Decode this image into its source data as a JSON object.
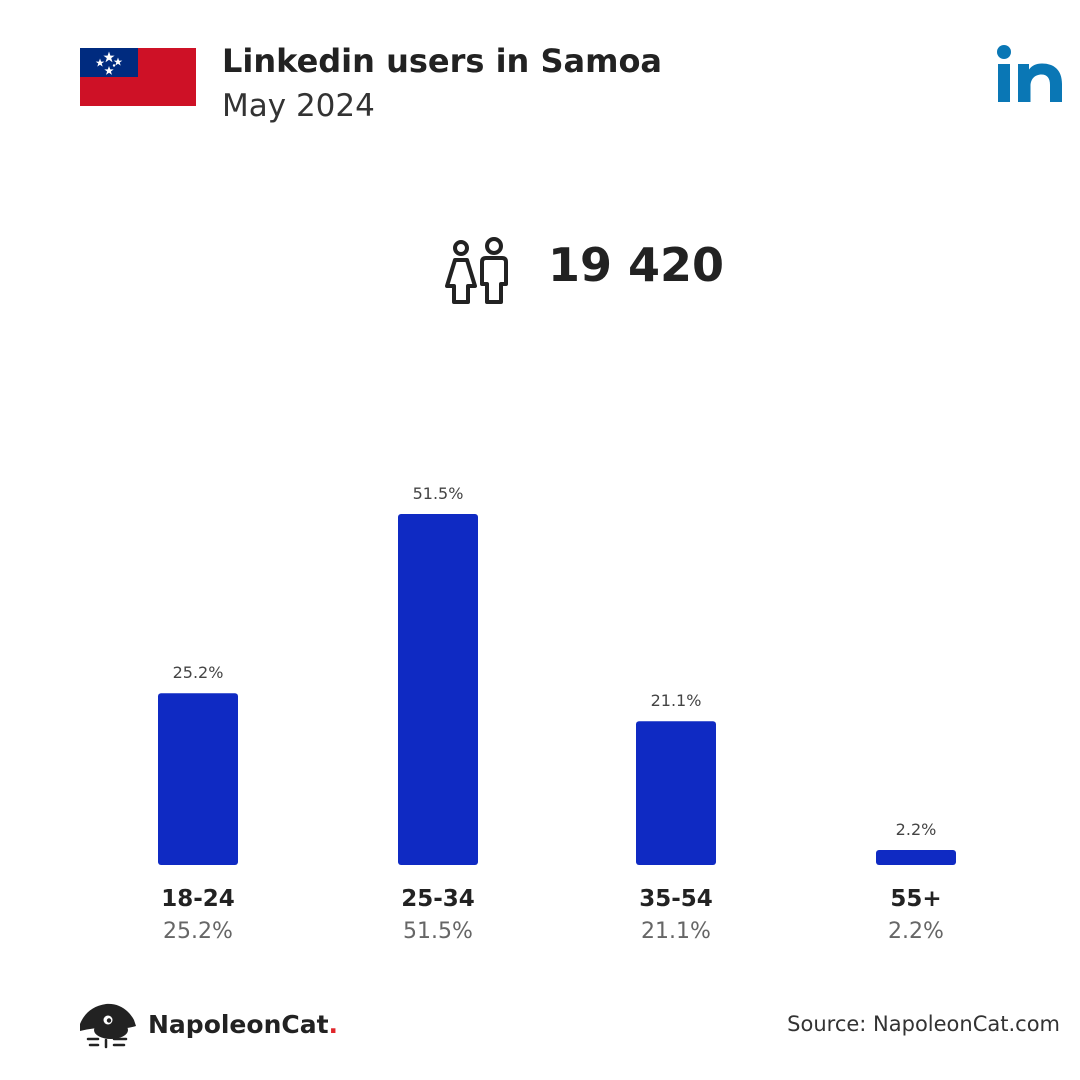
{
  "header": {
    "title": "Linkedin users in Samoa",
    "subtitle": "May 2024",
    "flag_icon": "samoa-flag-icon",
    "logo_icon": "linkedin-logo-icon"
  },
  "total": {
    "icon": "users-icon",
    "value": "19 420"
  },
  "chart_data": {
    "type": "bar",
    "categories": [
      "18-24",
      "25-34",
      "35-54",
      "55+"
    ],
    "values": [
      25.2,
      51.5,
      21.1,
      2.2
    ],
    "value_labels": [
      "25.2%",
      "51.5%",
      "21.1%",
      "2.2%"
    ],
    "unit": "%",
    "ylim": [
      0,
      51.5
    ],
    "grid": false,
    "bar_color": "#0f2ac3"
  },
  "colors": {
    "bar": "#0f2ac3",
    "linkedin": "#0a77b5",
    "flag_red": "#ce1126",
    "flag_blue": "#002b7f",
    "brand_dot": "#e0262b"
  },
  "footer": {
    "brand_name": "NapoleonCat",
    "brand_dot": ".",
    "brand_icon": "napoleoncat-logo-icon",
    "source": "Source: NapoleonCat.com"
  }
}
